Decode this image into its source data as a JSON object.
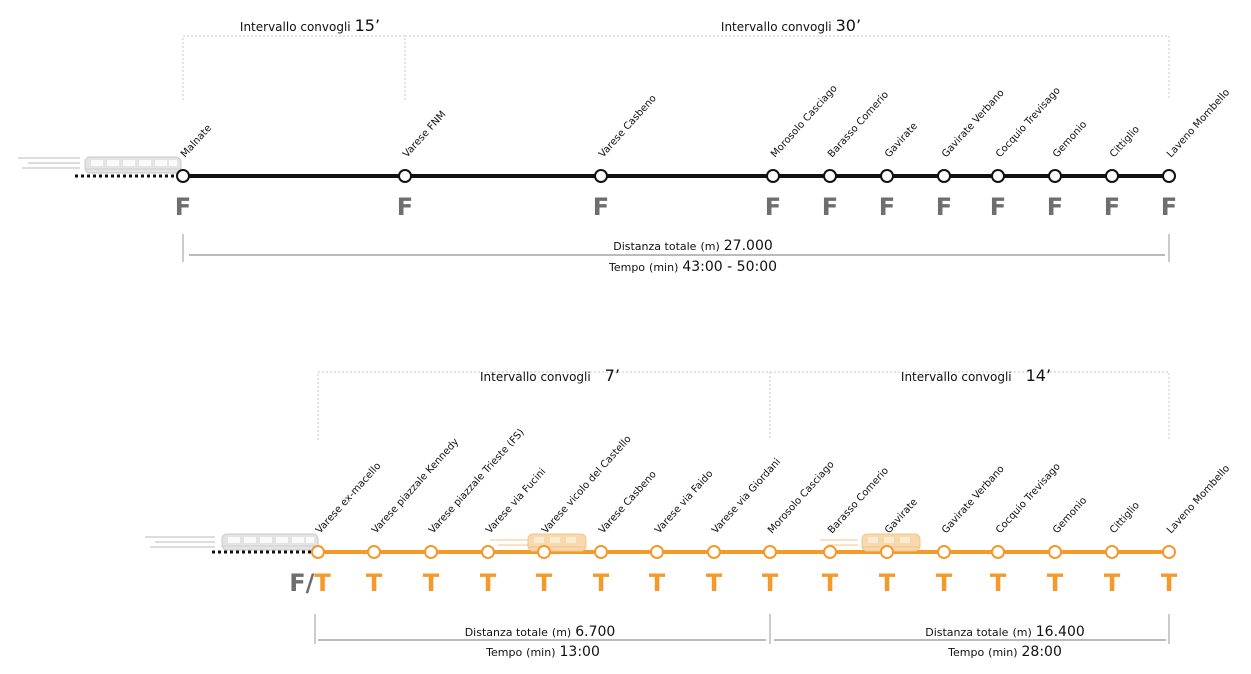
{
  "colors": {
    "line_top": "#111111",
    "line_bottom": "#f39a2b",
    "type_f": "#6e6e6e",
    "type_t": "#f39a2b",
    "dash": "#c8c8c8"
  },
  "top": {
    "intervals": [
      {
        "label": "Intervallo convogli",
        "value": "15’"
      },
      {
        "label": "Intervallo convogli",
        "value": "30’"
      }
    ],
    "stations": [
      {
        "name": "Malnate",
        "type": "F"
      },
      {
        "name": "Varese FNM",
        "type": "F"
      },
      {
        "name": "Varese Casbeno",
        "type": "F"
      },
      {
        "name": "Morosolo Casciago",
        "type": "F"
      },
      {
        "name": "Barasso Comerio",
        "type": "F"
      },
      {
        "name": "Gavirate",
        "type": "F"
      },
      {
        "name": "Gavirate Verbano",
        "type": "F"
      },
      {
        "name": "Cocquio Trevisago",
        "type": "F"
      },
      {
        "name": "Gemonio",
        "type": "F"
      },
      {
        "name": "Cittiglio",
        "type": "F"
      },
      {
        "name": "Laveno Mombello",
        "type": "F"
      }
    ],
    "distance": {
      "label": "Distanza totale",
      "unit": "(m)",
      "value": "27.000"
    },
    "time": {
      "label": "Tempo",
      "unit": "(min)",
      "value": "43:00 - 50:00"
    }
  },
  "bottom": {
    "intervals": [
      {
        "label": "Intervallo convogli",
        "value": "7’"
      },
      {
        "label": "Intervallo convogli",
        "value": "14’"
      }
    ],
    "stations": [
      {
        "name": "Varese ex-macello",
        "type": "F/T"
      },
      {
        "name": "Varese piazzale Kennedy",
        "type": "T"
      },
      {
        "name": "Varese piazzale Trieste (FS)",
        "type": "T"
      },
      {
        "name": "Varese via Fucini",
        "type": "T"
      },
      {
        "name": "Varese vicolo del Castello",
        "type": "T"
      },
      {
        "name": "Varese Casbeno",
        "type": "T"
      },
      {
        "name": "Varese via Faido",
        "type": "T"
      },
      {
        "name": "Varese via Giordani",
        "type": "T"
      },
      {
        "name": "Morosolo Casciago",
        "type": "T"
      },
      {
        "name": "Barasso Comerio",
        "type": "T"
      },
      {
        "name": "Gavirate",
        "type": "T"
      },
      {
        "name": "Gavirate Verbano",
        "type": "T"
      },
      {
        "name": "Cocquio Trevisago",
        "type": "T"
      },
      {
        "name": "Gemonio",
        "type": "T"
      },
      {
        "name": "Cittiglio",
        "type": "T"
      },
      {
        "name": "Laveno Mombello",
        "type": "T"
      }
    ],
    "segments": [
      {
        "distance": {
          "label": "Distanza totale",
          "unit": "(m)",
          "value": "6.700"
        },
        "time": {
          "label": "Tempo",
          "unit": "(min)",
          "value": "13:00"
        }
      },
      {
        "distance": {
          "label": "Distanza totale",
          "unit": "(m)",
          "value": "16.400"
        },
        "time": {
          "label": "Tempo",
          "unit": "(min)",
          "value": "28:00"
        }
      }
    ]
  },
  "icons": {
    "train": "train-icon",
    "tram": "tram-icon"
  }
}
